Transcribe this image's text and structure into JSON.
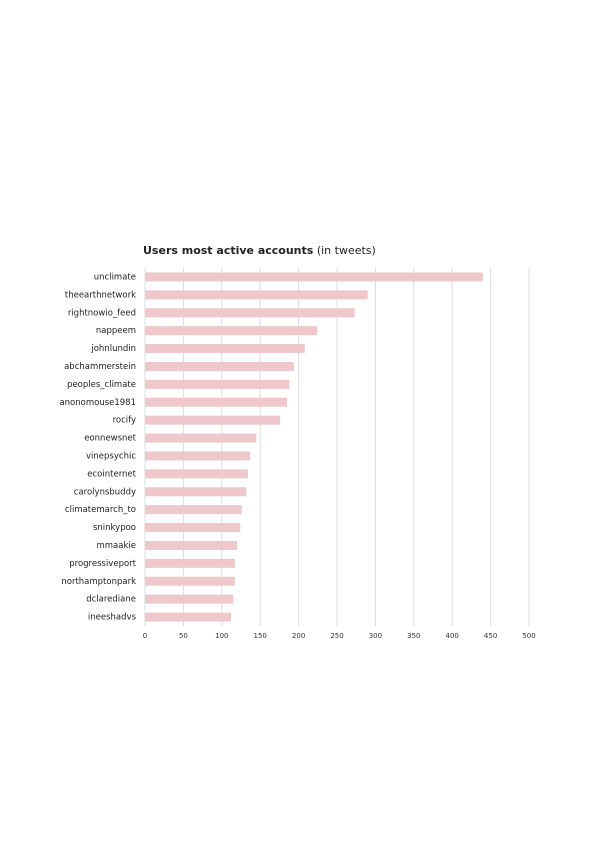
{
  "chart_data": {
    "type": "barh",
    "title": "Users most active accounts",
    "subtitle": "(in tweets)",
    "categories": [
      "unclimate",
      "theearthnetwork",
      "rightnowio_feed",
      "nappeem",
      "johnlundin",
      "abchammerstein",
      "peoples_climate",
      "anonomouse1981",
      "rocify",
      "eonnewsnet",
      "vinepsychic",
      "ecointernet",
      "carolynsbuddy",
      "climatemarch_to",
      "sninkypoo",
      "mmaakie",
      "progressiveport",
      "northamptonpark",
      "dclarediane",
      "ineeshadvs"
    ],
    "values": [
      440,
      290,
      273,
      224,
      208,
      194,
      188,
      185,
      176,
      145,
      137,
      134,
      132,
      126,
      124,
      120,
      117,
      117,
      115,
      112
    ],
    "color": "#efc8cb",
    "xlim": [
      0,
      500
    ],
    "xticks": [
      0,
      50,
      100,
      150,
      200,
      250,
      300,
      350,
      400,
      450,
      500
    ],
    "grid": true
  }
}
